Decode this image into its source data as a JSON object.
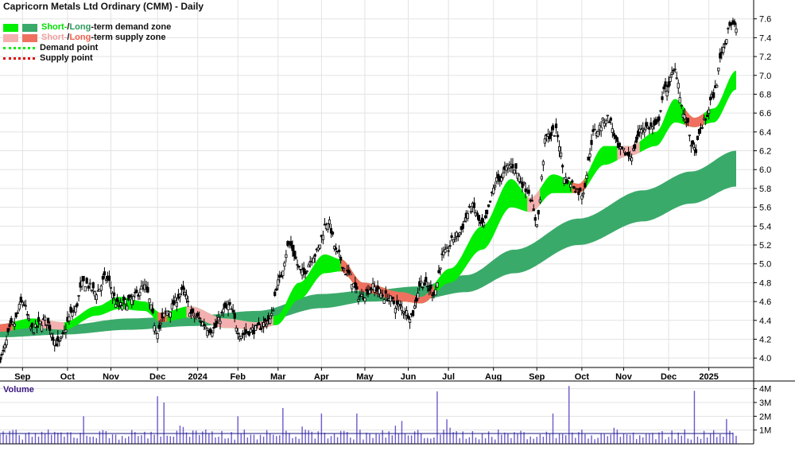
{
  "title": "Capricorn Metals Ltd Ordinary (CMM) - Daily",
  "legend": {
    "demand_zone": {
      "short": "Short-",
      "sep": " / ",
      "long": "Long",
      "rest": "-term demand zone"
    },
    "supply_zone": {
      "short": "Short-",
      "sep": " / ",
      "long": "Long",
      "rest": "-term supply zone"
    },
    "demand_point": "Demand point",
    "supply_point": "Supply point"
  },
  "colors": {
    "short_demand": "#00ee00",
    "long_demand": "#3aaa6a",
    "short_supply": "#f4b0b0",
    "long_supply": "#f07060",
    "short_text": "#00dd00",
    "long_text": "#2a9a5a",
    "short_supply_text": "#f0a0a0",
    "long_supply_text": "#f06050",
    "demand_point": "#00ee00",
    "supply_point": "#dd0000",
    "candle": "#000000",
    "volume_bar": "#6a5acd",
    "volume_title": "#3a1780",
    "grid": "#e3e3e3"
  },
  "volume_label": "Volume",
  "chart_data": {
    "type": "candlestick",
    "price_axis": {
      "ticks": [
        "4.0",
        "4.2",
        "4.4",
        "4.6",
        "4.8",
        "5.0",
        "5.2",
        "5.4",
        "5.6",
        "5.8",
        "6.0",
        "6.2",
        "6.4",
        "6.6",
        "6.8",
        "7.0",
        "7.2",
        "7.4",
        "7.6"
      ],
      "range": [
        3.9,
        7.8
      ]
    },
    "volume_axis": {
      "ticks": [
        "1M",
        "2M",
        "3M",
        "4M"
      ],
      "range": [
        0,
        4500000
      ]
    },
    "x_labels": [
      "Sep",
      "Oct",
      "Nov",
      "Dec",
      "2024",
      "Feb",
      "Mar",
      "Apr",
      "May",
      "Jun",
      "Jul",
      "Aug",
      "Sep",
      "Oct",
      "Nov",
      "Dec",
      "2025"
    ],
    "x_label_days": [
      14,
      42,
      69,
      98,
      123,
      148,
      173,
      200,
      227,
      254,
      279,
      307,
      334,
      362,
      388,
      416,
      441
    ],
    "total_days": 458,
    "close_anchors": [
      [
        0,
        4.0
      ],
      [
        8,
        4.35
      ],
      [
        14,
        4.6
      ],
      [
        20,
        4.3
      ],
      [
        28,
        4.4
      ],
      [
        36,
        4.15
      ],
      [
        46,
        4.5
      ],
      [
        52,
        4.8
      ],
      [
        60,
        4.7
      ],
      [
        66,
        4.85
      ],
      [
        74,
        4.55
      ],
      [
        80,
        4.6
      ],
      [
        90,
        4.75
      ],
      [
        98,
        4.3
      ],
      [
        104,
        4.5
      ],
      [
        114,
        4.7
      ],
      [
        120,
        4.45
      ],
      [
        132,
        4.3
      ],
      [
        142,
        4.55
      ],
      [
        150,
        4.25
      ],
      [
        158,
        4.3
      ],
      [
        168,
        4.4
      ],
      [
        173,
        4.8
      ],
      [
        180,
        5.2
      ],
      [
        188,
        4.9
      ],
      [
        196,
        5.1
      ],
      [
        204,
        5.45
      ],
      [
        210,
        5.1
      ],
      [
        216,
        4.9
      ],
      [
        224,
        4.65
      ],
      [
        232,
        4.75
      ],
      [
        240,
        4.65
      ],
      [
        248,
        4.55
      ],
      [
        256,
        4.45
      ],
      [
        262,
        4.8
      ],
      [
        270,
        4.7
      ],
      [
        276,
        5.1
      ],
      [
        284,
        5.3
      ],
      [
        294,
        5.6
      ],
      [
        300,
        5.4
      ],
      [
        310,
        5.9
      ],
      [
        318,
        6.05
      ],
      [
        328,
        5.8
      ],
      [
        334,
        5.45
      ],
      [
        340,
        6.35
      ],
      [
        346,
        6.4
      ],
      [
        352,
        5.9
      ],
      [
        362,
        5.75
      ],
      [
        370,
        6.4
      ],
      [
        378,
        6.55
      ],
      [
        386,
        6.2
      ],
      [
        392,
        6.15
      ],
      [
        400,
        6.45
      ],
      [
        408,
        6.45
      ],
      [
        414,
        6.85
      ],
      [
        420,
        7.05
      ],
      [
        426,
        6.55
      ],
      [
        432,
        6.2
      ],
      [
        438,
        6.5
      ],
      [
        444,
        6.8
      ],
      [
        450,
        7.3
      ],
      [
        454,
        7.55
      ],
      [
        458,
        7.5
      ]
    ],
    "short_zone_upper_anchors": [
      [
        0,
        4.36
      ],
      [
        20,
        4.42
      ],
      [
        40,
        4.38
      ],
      [
        60,
        4.55
      ],
      [
        74,
        4.65
      ],
      [
        90,
        4.6
      ],
      [
        100,
        4.48
      ],
      [
        118,
        4.55
      ],
      [
        140,
        4.42
      ],
      [
        160,
        4.38
      ],
      [
        172,
        4.45
      ],
      [
        186,
        4.8
      ],
      [
        202,
        5.1
      ],
      [
        212,
        5.05
      ],
      [
        226,
        4.8
      ],
      [
        250,
        4.7
      ],
      [
        262,
        4.65
      ],
      [
        280,
        4.95
      ],
      [
        300,
        5.4
      ],
      [
        318,
        5.9
      ],
      [
        330,
        5.7
      ],
      [
        344,
        5.95
      ],
      [
        360,
        5.85
      ],
      [
        376,
        6.25
      ],
      [
        392,
        6.25
      ],
      [
        408,
        6.4
      ],
      [
        420,
        6.75
      ],
      [
        432,
        6.55
      ],
      [
        444,
        6.65
      ],
      [
        458,
        7.05
      ]
    ],
    "short_zone_lower_anchors": [
      [
        0,
        4.28
      ],
      [
        20,
        4.32
      ],
      [
        40,
        4.3
      ],
      [
        60,
        4.45
      ],
      [
        74,
        4.52
      ],
      [
        90,
        4.5
      ],
      [
        100,
        4.38
      ],
      [
        118,
        4.43
      ],
      [
        140,
        4.32
      ],
      [
        160,
        4.3
      ],
      [
        172,
        4.35
      ],
      [
        186,
        4.62
      ],
      [
        202,
        4.9
      ],
      [
        212,
        4.92
      ],
      [
        226,
        4.7
      ],
      [
        250,
        4.6
      ],
      [
        262,
        4.58
      ],
      [
        280,
        4.8
      ],
      [
        300,
        5.15
      ],
      [
        318,
        5.6
      ],
      [
        330,
        5.55
      ],
      [
        344,
        5.75
      ],
      [
        360,
        5.75
      ],
      [
        376,
        6.05
      ],
      [
        392,
        6.15
      ],
      [
        408,
        6.25
      ],
      [
        420,
        6.5
      ],
      [
        432,
        6.45
      ],
      [
        444,
        6.5
      ],
      [
        458,
        6.85
      ]
    ],
    "long_zone_upper_anchors": [
      [
        0,
        4.33
      ],
      [
        40,
        4.35
      ],
      [
        80,
        4.42
      ],
      [
        120,
        4.45
      ],
      [
        160,
        4.5
      ],
      [
        200,
        4.68
      ],
      [
        230,
        4.72
      ],
      [
        260,
        4.76
      ],
      [
        290,
        4.88
      ],
      [
        320,
        5.15
      ],
      [
        360,
        5.48
      ],
      [
        400,
        5.78
      ],
      [
        430,
        5.98
      ],
      [
        458,
        6.2
      ]
    ],
    "long_zone_lower_anchors": [
      [
        0,
        4.22
      ],
      [
        40,
        4.25
      ],
      [
        80,
        4.3
      ],
      [
        120,
        4.34
      ],
      [
        160,
        4.38
      ],
      [
        200,
        4.53
      ],
      [
        230,
        4.6
      ],
      [
        260,
        4.62
      ],
      [
        290,
        4.7
      ],
      [
        320,
        4.9
      ],
      [
        360,
        5.2
      ],
      [
        400,
        5.45
      ],
      [
        430,
        5.64
      ],
      [
        458,
        5.82
      ]
    ],
    "supply_segments": [
      [
        0,
        8
      ],
      [
        25,
        40
      ],
      [
        98,
        104
      ],
      [
        116,
        170
      ],
      [
        212,
        270
      ],
      [
        328,
        336
      ],
      [
        356,
        364
      ],
      [
        384,
        398
      ],
      [
        426,
        438
      ]
    ],
    "volume_baseline": 750000,
    "volume_spikes": [
      [
        52,
        2000000
      ],
      [
        98,
        3450000
      ],
      [
        103,
        3000000
      ],
      [
        148,
        2000000
      ],
      [
        176,
        2600000
      ],
      [
        200,
        2200000
      ],
      [
        222,
        2200000
      ],
      [
        272,
        3800000
      ],
      [
        345,
        2200000
      ],
      [
        354,
        4200000
      ],
      [
        432,
        3850000
      ],
      [
        452,
        1800000
      ]
    ]
  }
}
